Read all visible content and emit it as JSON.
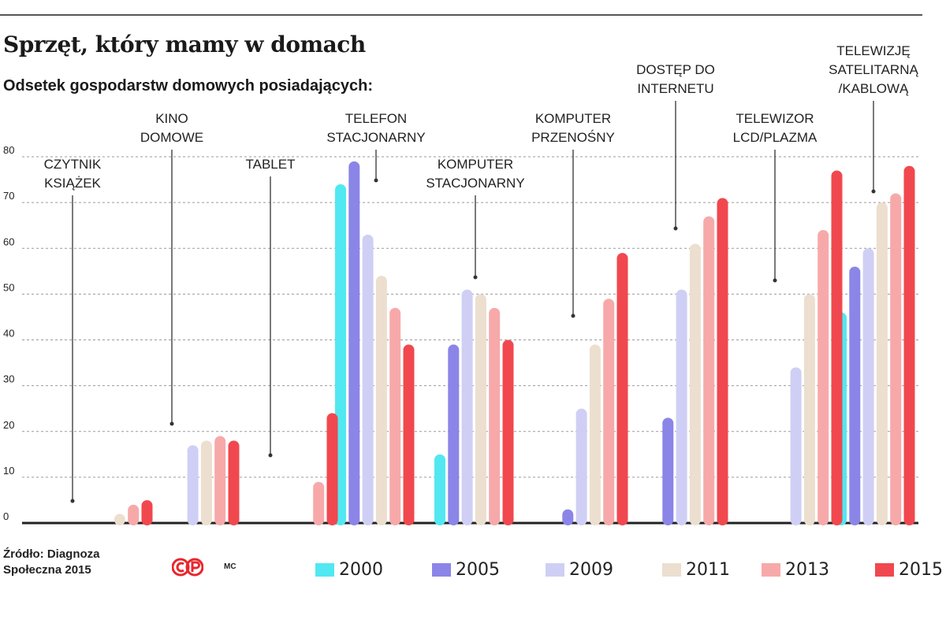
{
  "title": "Sprzęt, który mamy w domach",
  "subtitle": "Odsetek gospodarstw domowych posiadających:",
  "source": "Źródło: Diagnoza Społeczna 2015",
  "logo_text": "CP",
  "author": "MC",
  "colors": {
    "2000": "#52e8f1",
    "2005": "#8b85e8",
    "2009": "#cfcff5",
    "2011": "#ecdfcf",
    "2013": "#f7a9a9",
    "2015": "#f0484e"
  },
  "chart_data": {
    "type": "bar",
    "title": "Sprzęt, który mamy w domach",
    "subtitle": "Odsetek gospodarstw domowych posiadających:",
    "ylim": [
      0,
      80
    ],
    "yticks": [
      "0",
      "10",
      "20",
      "30",
      "40",
      "50",
      "60",
      "70",
      "80"
    ],
    "grid": true,
    "legend_position": "bottom",
    "categories": [
      "CZYTNIK KSIĄŻEK",
      "KINO DOMOWE",
      "TABLET",
      "TELEFON STACJONARNY",
      "KOMPUTER STACJONARNY",
      "KOMPUTER PRZENOŚNY",
      "DOSTĘP DO INTERNETU",
      "TELEWIZOR LCD/PLAZMA",
      "TELEWIZJĘ SATELITARNĄ /KABLOWĄ"
    ],
    "category_label_lines": [
      [
        "CZYTNIK",
        "KSIĄŻEK"
      ],
      [
        "KINO",
        "DOMOWE"
      ],
      [
        "TABLET"
      ],
      [
        "TELEFON",
        "STACJONARNY"
      ],
      [
        "KOMPUTER",
        "STACJONARNY"
      ],
      [
        "KOMPUTER",
        "PRZENOŚNY"
      ],
      [
        "DOSTĘP DO",
        "INTERNETU"
      ],
      [
        "TELEWIZOR",
        "LCD/PLAZMA"
      ],
      [
        "TELEWIZJĘ",
        "SATELITARNĄ",
        "/KABLOWĄ"
      ]
    ],
    "series": [
      {
        "name": "2000",
        "values": [
          null,
          null,
          null,
          74,
          15,
          null,
          null,
          null,
          46
        ]
      },
      {
        "name": "2005",
        "values": [
          null,
          null,
          null,
          79,
          39,
          3,
          23,
          null,
          56
        ]
      },
      {
        "name": "2009",
        "values": [
          null,
          17,
          null,
          63,
          51,
          25,
          51,
          34,
          60
        ]
      },
      {
        "name": "2011",
        "values": [
          2,
          18,
          null,
          54,
          50,
          39,
          61,
          50,
          70
        ]
      },
      {
        "name": "2013",
        "values": [
          4,
          19,
          9,
          47,
          47,
          49,
          67,
          64,
          72
        ]
      },
      {
        "name": "2015",
        "values": [
          5,
          18,
          24,
          39,
          40,
          59,
          71,
          77,
          78
        ]
      }
    ]
  }
}
